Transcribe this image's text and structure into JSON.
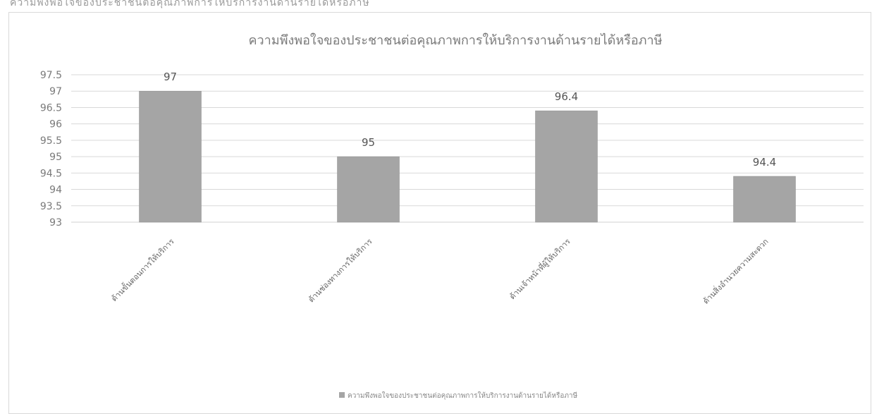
{
  "header_strip_text": "ความพึงพอใจของประชาชนต่อคุณภาพการให้บริการงานด้านรายได้หรือภาษี",
  "chart_data": {
    "type": "bar",
    "title": "ความพึงพอใจของประชาชนต่อคุณภาพการให้บริการงานด้านรายได้หรือภาษี",
    "categories": [
      "ด้านขั้นตอนการให้บริการ",
      "ด้านช่องทางการให้บริการ",
      "ด้านเจ้าหน้าที่ผู้ให้บริการ",
      "ด้านสิ่งอำนวยความสะดวก"
    ],
    "series": [
      {
        "name": "ความพึงพอใจของประชาชนต่อคุณภาพการให้บริการงานด้านรายได้หรือภาษี",
        "values": [
          97,
          95,
          96.4,
          94.4
        ]
      }
    ],
    "data_labels": [
      "97",
      "95",
      "96.4",
      "94.4"
    ],
    "yticks": [
      "93",
      "93.5",
      "94",
      "94.5",
      "95",
      "95.5",
      "96",
      "96.5",
      "97",
      "97.5"
    ],
    "ylim": [
      93,
      97.5
    ],
    "xlabel": "",
    "ylabel": "",
    "grid": true,
    "legend_position": "bottom",
    "colors": {
      "bar": "#a5a5a5",
      "bar_edge": "#8f8f8f",
      "grid": "#d9d9d9"
    }
  }
}
